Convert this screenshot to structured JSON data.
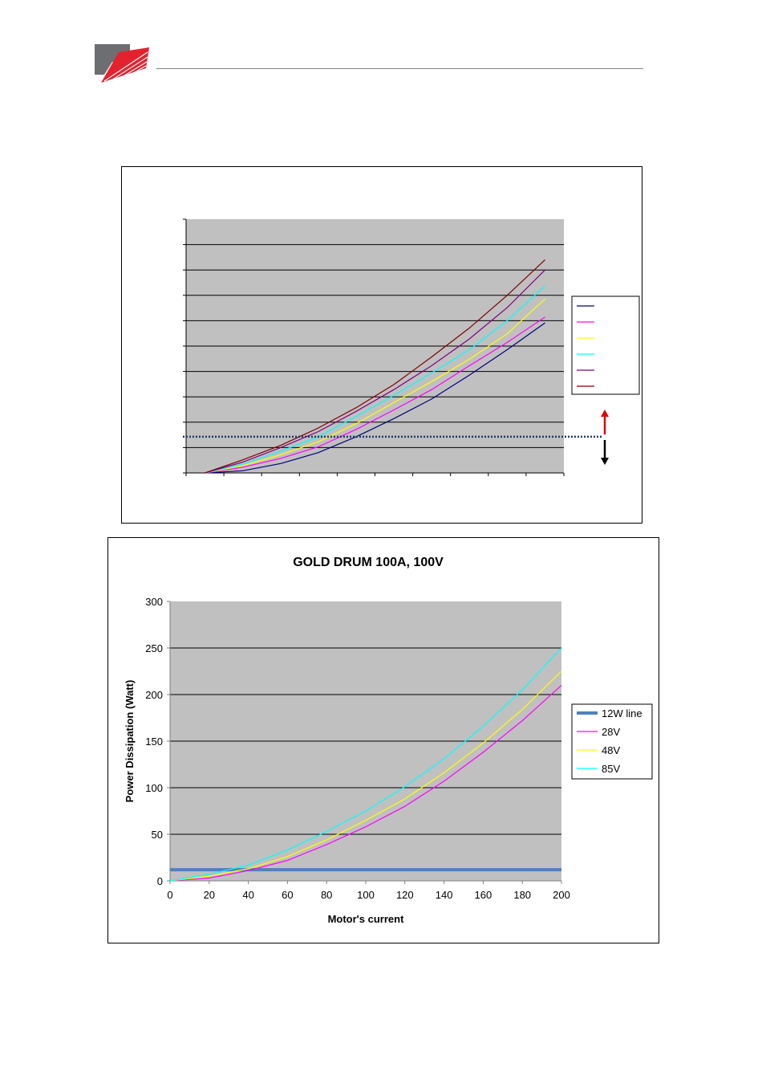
{
  "colors": {
    "plot_bg": "#C0C0C0",
    "brand_red": "#E4222E",
    "brand_gray": "#6D6E71"
  },
  "chart_data": [
    {
      "type": "line",
      "x": [
        10,
        20,
        30,
        40,
        50,
        60,
        70,
        80,
        90,
        100
      ],
      "series": [
        {
          "color": "#000080",
          "values": [
            0,
            3,
            13,
            28,
            50,
            75,
            102,
            135,
            170,
            207
          ]
        },
        {
          "color": "#FF00FF",
          "values": [
            0,
            8,
            20,
            36,
            60,
            87,
            115,
            148,
            180,
            215
          ]
        },
        {
          "color": "#FFFF00",
          "values": [
            0,
            10,
            25,
            43,
            68,
            97,
            126,
            157,
            192,
            240
          ]
        },
        {
          "color": "#00FFFF",
          "values": [
            0,
            12,
            30,
            50,
            78,
            107,
            138,
            170,
            210,
            258
          ]
        },
        {
          "color": "#800080",
          "values": [
            0,
            15,
            35,
            57,
            85,
            115,
            148,
            185,
            228,
            280
          ]
        },
        {
          "color": "#800000",
          "values": [
            0,
            18,
            38,
            62,
            90,
            122,
            160,
            200,
            245,
            294
          ]
        }
      ],
      "ylim": [
        0,
        350
      ],
      "xlim": [
        5,
        105
      ],
      "y_gridlines": [
        35,
        70,
        105,
        140,
        175,
        210,
        245,
        280,
        315
      ],
      "threshold": 50,
      "legend": "right"
    },
    {
      "type": "line",
      "title": "GOLD DRUM 100A, 100V",
      "xlabel": "Motor's current",
      "ylabel": "Power Dissipation (Watt)",
      "x": [
        0,
        20,
        40,
        60,
        80,
        100,
        120,
        140,
        160,
        180,
        200
      ],
      "x_ticks": [
        "0",
        "20",
        "40",
        "60",
        "80",
        "100",
        "120",
        "140",
        "160",
        "180",
        "200"
      ],
      "y_ticks": [
        "0",
        "50",
        "100",
        "150",
        "200",
        "250",
        "300"
      ],
      "xlim": [
        0,
        200
      ],
      "ylim": [
        0,
        300
      ],
      "legend": "right",
      "series": [
        {
          "name": "12W line",
          "color": "#4F81BD",
          "values": [
            12,
            12,
            12,
            12,
            12,
            12,
            12,
            12,
            12,
            12,
            12
          ]
        },
        {
          "name": "28V",
          "color": "#FF00FF",
          "values": [
            0,
            3,
            11,
            22,
            39,
            58,
            80,
            107,
            138,
            172,
            210
          ]
        },
        {
          "name": "48V",
          "color": "#FFFF00",
          "values": [
            0,
            5,
            13,
            26,
            44,
            65,
            88,
            116,
            148,
            184,
            225
          ]
        },
        {
          "name": "85V",
          "color": "#00FFFF",
          "values": [
            0,
            7,
            17,
            33,
            53,
            75,
            101,
            131,
            166,
            205,
            250
          ]
        }
      ]
    }
  ]
}
